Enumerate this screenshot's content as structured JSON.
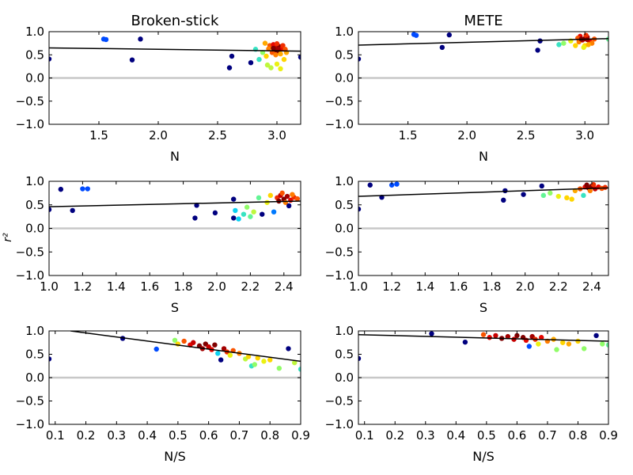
{
  "figure": {
    "ylabel": "r²",
    "colors": {
      "zero_line": "#c8c8c8",
      "fit_line": "#000000",
      "colormap": [
        "#00007f",
        "#0044ff",
        "#00ccff",
        "#7cff7a",
        "#ffee00",
        "#ff7000",
        "#e50000",
        "#7f0000"
      ]
    }
  },
  "chart_data": [
    {
      "type": "scatter",
      "title": "Broken-stick",
      "xlabel": "N",
      "xlim": [
        1.08,
        3.2
      ],
      "ylim": [
        -1.0,
        1.0
      ],
      "xticks": [
        "1.5",
        "2.0",
        "2.5",
        "3.0"
      ],
      "yticks": [
        "1.0",
        "0.5",
        "0.0",
        "−0.5",
        "−1.0"
      ],
      "reference_line_y": 0,
      "fit_line": {
        "x": [
          1.08,
          3.2
        ],
        "y": [
          0.65,
          0.58
        ]
      },
      "points": [
        {
          "x": 1.08,
          "y": 0.41,
          "c": 0.0
        },
        {
          "x": 1.54,
          "y": 0.84,
          "c": 0.15
        },
        {
          "x": 1.56,
          "y": 0.83,
          "c": 0.15
        },
        {
          "x": 1.78,
          "y": 0.39,
          "c": 0.0
        },
        {
          "x": 1.85,
          "y": 0.84,
          "c": 0.0
        },
        {
          "x": 2.6,
          "y": 0.22,
          "c": 0.0
        },
        {
          "x": 2.62,
          "y": 0.47,
          "c": 0.0
        },
        {
          "x": 2.78,
          "y": 0.33,
          "c": 0.0
        },
        {
          "x": 2.85,
          "y": 0.4,
          "c": 0.35
        },
        {
          "x": 2.82,
          "y": 0.62,
          "c": 0.35
        },
        {
          "x": 2.88,
          "y": 0.55,
          "c": 0.45
        },
        {
          "x": 2.92,
          "y": 0.28,
          "c": 0.5
        },
        {
          "x": 2.95,
          "y": 0.22,
          "c": 0.5
        },
        {
          "x": 3.0,
          "y": 0.3,
          "c": 0.55
        },
        {
          "x": 3.03,
          "y": 0.2,
          "c": 0.55
        },
        {
          "x": 3.06,
          "y": 0.4,
          "c": 0.6
        },
        {
          "x": 3.08,
          "y": 0.55,
          "c": 0.65
        },
        {
          "x": 2.9,
          "y": 0.75,
          "c": 0.65
        },
        {
          "x": 2.94,
          "y": 0.7,
          "c": 0.75
        },
        {
          "x": 2.97,
          "y": 0.72,
          "c": 0.85
        },
        {
          "x": 3.0,
          "y": 0.65,
          "c": 0.9
        },
        {
          "x": 3.02,
          "y": 0.68,
          "c": 1.0
        },
        {
          "x": 2.98,
          "y": 0.6,
          "c": 0.95
        },
        {
          "x": 3.04,
          "y": 0.63,
          "c": 0.85
        },
        {
          "x": 2.96,
          "y": 0.55,
          "c": 0.75
        },
        {
          "x": 3.01,
          "y": 0.58,
          "c": 1.0
        },
        {
          "x": 3.05,
          "y": 0.7,
          "c": 0.8
        },
        {
          "x": 2.93,
          "y": 0.63,
          "c": 0.7
        },
        {
          "x": 3.0,
          "y": 0.74,
          "c": 0.8
        },
        {
          "x": 3.07,
          "y": 0.62,
          "c": 0.75
        },
        {
          "x": 2.99,
          "y": 0.5,
          "c": 0.7
        },
        {
          "x": 3.03,
          "y": 0.52,
          "c": 0.65
        },
        {
          "x": 2.91,
          "y": 0.47,
          "c": 0.6
        },
        {
          "x": 2.97,
          "y": 0.64,
          "c": 1.0
        },
        {
          "x": 3.01,
          "y": 0.62,
          "c": 0.95
        },
        {
          "x": 3.2,
          "y": 0.45,
          "c": 0.0
        }
      ]
    },
    {
      "type": "scatter",
      "title": "METE",
      "xlabel": "N",
      "xlim": [
        1.08,
        3.2
      ],
      "ylim": [
        -1.0,
        1.0
      ],
      "xticks": [
        "1.5",
        "2.0",
        "2.5",
        "3.0"
      ],
      "yticks": [
        "1.0",
        "0.5",
        "0.0",
        "−0.5",
        "−1.0"
      ],
      "reference_line_y": 0,
      "fit_line": {
        "x": [
          1.08,
          3.2
        ],
        "y": [
          0.71,
          0.85
        ]
      },
      "points": [
        {
          "x": 1.08,
          "y": 0.41,
          "c": 0.0
        },
        {
          "x": 1.55,
          "y": 0.94,
          "c": 0.15
        },
        {
          "x": 1.57,
          "y": 0.92,
          "c": 0.15
        },
        {
          "x": 1.79,
          "y": 0.66,
          "c": 0.0
        },
        {
          "x": 1.85,
          "y": 0.93,
          "c": 0.0
        },
        {
          "x": 2.6,
          "y": 0.6,
          "c": 0.0
        },
        {
          "x": 2.62,
          "y": 0.8,
          "c": 0.0
        },
        {
          "x": 2.78,
          "y": 0.72,
          "c": 0.35
        },
        {
          "x": 2.82,
          "y": 0.75,
          "c": 0.45
        },
        {
          "x": 2.88,
          "y": 0.8,
          "c": 0.55
        },
        {
          "x": 2.92,
          "y": 0.7,
          "c": 0.6
        },
        {
          "x": 2.95,
          "y": 0.78,
          "c": 0.7
        },
        {
          "x": 2.98,
          "y": 0.82,
          "c": 0.9
        },
        {
          "x": 3.0,
          "y": 0.85,
          "c": 1.0
        },
        {
          "x": 3.02,
          "y": 0.88,
          "c": 0.95
        },
        {
          "x": 2.96,
          "y": 0.9,
          "c": 0.85
        },
        {
          "x": 3.04,
          "y": 0.8,
          "c": 0.85
        },
        {
          "x": 3.06,
          "y": 0.75,
          "c": 0.7
        },
        {
          "x": 3.0,
          "y": 0.7,
          "c": 0.6
        },
        {
          "x": 2.94,
          "y": 0.86,
          "c": 0.75
        },
        {
          "x": 3.01,
          "y": 0.92,
          "c": 0.8
        },
        {
          "x": 3.08,
          "y": 0.84,
          "c": 0.75
        },
        {
          "x": 2.99,
          "y": 0.66,
          "c": 0.55
        },
        {
          "x": 3.03,
          "y": 0.72,
          "c": 0.65
        },
        {
          "x": 2.97,
          "y": 0.84,
          "c": 1.0
        },
        {
          "x": 3.02,
          "y": 0.83,
          "c": 0.95
        },
        {
          "x": 3.2,
          "y": 0.84,
          "c": 0.4
        }
      ]
    },
    {
      "type": "scatter",
      "title": "",
      "xlabel": "S",
      "xlim": [
        1.0,
        2.5
      ],
      "ylim": [
        -1.0,
        1.0
      ],
      "xticks": [
        "1.0",
        "1.2",
        "1.4",
        "1.6",
        "1.8",
        "2.0",
        "2.2",
        "2.4"
      ],
      "yticks": [
        "1.0",
        "0.5",
        "0.0",
        "−0.5",
        "−1.0"
      ],
      "reference_line_y": 0,
      "fit_line": {
        "x": [
          1.0,
          2.5
        ],
        "y": [
          0.46,
          0.58
        ]
      },
      "points": [
        {
          "x": 1.0,
          "y": 0.4,
          "c": 0.0
        },
        {
          "x": 1.07,
          "y": 0.83,
          "c": 0.0
        },
        {
          "x": 1.14,
          "y": 0.38,
          "c": 0.0
        },
        {
          "x": 1.2,
          "y": 0.84,
          "c": 0.15
        },
        {
          "x": 1.23,
          "y": 0.84,
          "c": 0.15
        },
        {
          "x": 1.87,
          "y": 0.22,
          "c": 0.0
        },
        {
          "x": 1.88,
          "y": 0.49,
          "c": 0.0
        },
        {
          "x": 1.99,
          "y": 0.33,
          "c": 0.0
        },
        {
          "x": 2.1,
          "y": 0.62,
          "c": 0.0
        },
        {
          "x": 2.1,
          "y": 0.22,
          "c": 0.0
        },
        {
          "x": 2.11,
          "y": 0.38,
          "c": 0.3
        },
        {
          "x": 2.13,
          "y": 0.2,
          "c": 0.3
        },
        {
          "x": 2.16,
          "y": 0.3,
          "c": 0.35
        },
        {
          "x": 2.18,
          "y": 0.45,
          "c": 0.45
        },
        {
          "x": 2.2,
          "y": 0.25,
          "c": 0.4
        },
        {
          "x": 2.22,
          "y": 0.35,
          "c": 0.5
        },
        {
          "x": 2.25,
          "y": 0.65,
          "c": 0.4
        },
        {
          "x": 2.27,
          "y": 0.3,
          "c": 0.0
        },
        {
          "x": 2.3,
          "y": 0.55,
          "c": 0.55
        },
        {
          "x": 2.32,
          "y": 0.7,
          "c": 0.6
        },
        {
          "x": 2.34,
          "y": 0.35,
          "c": 0.2
        },
        {
          "x": 2.36,
          "y": 0.65,
          "c": 0.8
        },
        {
          "x": 2.38,
          "y": 0.7,
          "c": 0.9
        },
        {
          "x": 2.4,
          "y": 0.62,
          "c": 1.0
        },
        {
          "x": 2.42,
          "y": 0.68,
          "c": 0.95
        },
        {
          "x": 2.44,
          "y": 0.6,
          "c": 0.85
        },
        {
          "x": 2.39,
          "y": 0.75,
          "c": 0.75
        },
        {
          "x": 2.41,
          "y": 0.55,
          "c": 0.7
        },
        {
          "x": 2.43,
          "y": 0.48,
          "c": 0.0
        },
        {
          "x": 2.46,
          "y": 0.66,
          "c": 0.8
        },
        {
          "x": 2.37,
          "y": 0.58,
          "c": 1.0
        },
        {
          "x": 2.45,
          "y": 0.72,
          "c": 0.7
        },
        {
          "x": 2.48,
          "y": 0.63,
          "c": 0.75
        }
      ]
    },
    {
      "type": "scatter",
      "title": "",
      "xlabel": "S",
      "xlim": [
        1.0,
        2.5
      ],
      "ylim": [
        -1.0,
        1.0
      ],
      "xticks": [
        "1.0",
        "1.2",
        "1.4",
        "1.6",
        "1.8",
        "2.0",
        "2.2",
        "2.4"
      ],
      "yticks": [
        "1.0",
        "0.5",
        "0.0",
        "−0.5",
        "−1.0"
      ],
      "reference_line_y": 0,
      "fit_line": {
        "x": [
          1.0,
          2.5
        ],
        "y": [
          0.68,
          0.86
        ]
      },
      "points": [
        {
          "x": 1.0,
          "y": 0.41,
          "c": 0.0
        },
        {
          "x": 1.07,
          "y": 0.92,
          "c": 0.0
        },
        {
          "x": 1.14,
          "y": 0.66,
          "c": 0.0
        },
        {
          "x": 1.2,
          "y": 0.92,
          "c": 0.15
        },
        {
          "x": 1.23,
          "y": 0.94,
          "c": 0.15
        },
        {
          "x": 1.87,
          "y": 0.6,
          "c": 0.0
        },
        {
          "x": 1.88,
          "y": 0.8,
          "c": 0.0
        },
        {
          "x": 1.99,
          "y": 0.72,
          "c": 0.0
        },
        {
          "x": 2.1,
          "y": 0.9,
          "c": 0.0
        },
        {
          "x": 2.11,
          "y": 0.7,
          "c": 0.4
        },
        {
          "x": 2.15,
          "y": 0.75,
          "c": 0.45
        },
        {
          "x": 2.2,
          "y": 0.68,
          "c": 0.55
        },
        {
          "x": 2.25,
          "y": 0.65,
          "c": 0.6
        },
        {
          "x": 2.28,
          "y": 0.62,
          "c": 0.6
        },
        {
          "x": 2.3,
          "y": 0.8,
          "c": 0.65
        },
        {
          "x": 2.33,
          "y": 0.84,
          "c": 0.75
        },
        {
          "x": 2.35,
          "y": 0.7,
          "c": 0.35
        },
        {
          "x": 2.36,
          "y": 0.88,
          "c": 0.85
        },
        {
          "x": 2.38,
          "y": 0.86,
          "c": 0.95
        },
        {
          "x": 2.4,
          "y": 0.9,
          "c": 1.0
        },
        {
          "x": 2.42,
          "y": 0.84,
          "c": 0.9
        },
        {
          "x": 2.44,
          "y": 0.88,
          "c": 0.85
        },
        {
          "x": 2.39,
          "y": 0.8,
          "c": 0.7
        },
        {
          "x": 2.41,
          "y": 0.93,
          "c": 0.8
        },
        {
          "x": 2.46,
          "y": 0.85,
          "c": 0.75
        },
        {
          "x": 2.48,
          "y": 0.87,
          "c": 0.8
        },
        {
          "x": 2.37,
          "y": 0.92,
          "c": 1.0
        }
      ]
    },
    {
      "type": "scatter",
      "title": "",
      "xlabel": "N/S",
      "xlim": [
        0.08,
        0.9
      ],
      "ylim": [
        -1.0,
        1.0
      ],
      "xticks": [
        "0.1",
        "0.2",
        "0.3",
        "0.4",
        "0.5",
        "0.6",
        "0.7",
        "0.8",
        "0.9"
      ],
      "yticks": [
        "1.0",
        "0.5",
        "0.0",
        "−0.5",
        "−1.0"
      ],
      "reference_line_y": 0,
      "fit_line": {
        "x": [
          0.15,
          0.9
        ],
        "y": [
          1.0,
          0.35
        ]
      },
      "points": [
        {
          "x": 0.08,
          "y": 0.4,
          "c": 0.0
        },
        {
          "x": 0.32,
          "y": 0.84,
          "c": 0.0
        },
        {
          "x": 0.43,
          "y": 0.61,
          "c": 0.15
        },
        {
          "x": 0.49,
          "y": 0.8,
          "c": 0.45
        },
        {
          "x": 0.5,
          "y": 0.72,
          "c": 0.6
        },
        {
          "x": 0.52,
          "y": 0.78,
          "c": 0.75
        },
        {
          "x": 0.54,
          "y": 0.7,
          "c": 0.85
        },
        {
          "x": 0.55,
          "y": 0.75,
          "c": 0.9
        },
        {
          "x": 0.57,
          "y": 0.68,
          "c": 1.0
        },
        {
          "x": 0.58,
          "y": 0.62,
          "c": 0.95
        },
        {
          "x": 0.59,
          "y": 0.72,
          "c": 1.0
        },
        {
          "x": 0.6,
          "y": 0.66,
          "c": 0.9
        },
        {
          "x": 0.61,
          "y": 0.6,
          "c": 0.85
        },
        {
          "x": 0.62,
          "y": 0.7,
          "c": 1.0
        },
        {
          "x": 0.63,
          "y": 0.52,
          "c": 0.3
        },
        {
          "x": 0.64,
          "y": 0.38,
          "c": 0.0
        },
        {
          "x": 0.65,
          "y": 0.62,
          "c": 0.95
        },
        {
          "x": 0.66,
          "y": 0.55,
          "c": 0.8
        },
        {
          "x": 0.67,
          "y": 0.48,
          "c": 0.55
        },
        {
          "x": 0.68,
          "y": 0.58,
          "c": 0.75
        },
        {
          "x": 0.7,
          "y": 0.52,
          "c": 0.7
        },
        {
          "x": 0.72,
          "y": 0.4,
          "c": 0.5
        },
        {
          "x": 0.73,
          "y": 0.45,
          "c": 0.6
        },
        {
          "x": 0.74,
          "y": 0.25,
          "c": 0.35
        },
        {
          "x": 0.75,
          "y": 0.28,
          "c": 0.45
        },
        {
          "x": 0.76,
          "y": 0.42,
          "c": 0.6
        },
        {
          "x": 0.78,
          "y": 0.35,
          "c": 0.55
        },
        {
          "x": 0.8,
          "y": 0.38,
          "c": 0.6
        },
        {
          "x": 0.83,
          "y": 0.2,
          "c": 0.45
        },
        {
          "x": 0.86,
          "y": 0.62,
          "c": 0.0
        },
        {
          "x": 0.88,
          "y": 0.32,
          "c": 0.5
        },
        {
          "x": 0.9,
          "y": 0.18,
          "c": 0.35
        }
      ]
    },
    {
      "type": "scatter",
      "title": "",
      "xlabel": "N/S",
      "xlim": [
        0.08,
        0.9
      ],
      "ylim": [
        -1.0,
        1.0
      ],
      "xticks": [
        "0.1",
        "0.2",
        "0.3",
        "0.4",
        "0.5",
        "0.6",
        "0.7",
        "0.8",
        "0.9"
      ],
      "yticks": [
        "1.0",
        "0.5",
        "0.0",
        "−0.5",
        "−1.0"
      ],
      "reference_line_y": 0,
      "fit_line": {
        "x": [
          0.08,
          0.9
        ],
        "y": [
          0.92,
          0.78
        ]
      },
      "points": [
        {
          "x": 0.08,
          "y": 0.41,
          "c": 0.0
        },
        {
          "x": 0.32,
          "y": 0.94,
          "c": 0.0
        },
        {
          "x": 0.43,
          "y": 0.76,
          "c": 0.0
        },
        {
          "x": 0.49,
          "y": 0.92,
          "c": 0.75
        },
        {
          "x": 0.51,
          "y": 0.86,
          "c": 0.85
        },
        {
          "x": 0.53,
          "y": 0.9,
          "c": 0.9
        },
        {
          "x": 0.55,
          "y": 0.84,
          "c": 1.0
        },
        {
          "x": 0.57,
          "y": 0.88,
          "c": 0.95
        },
        {
          "x": 0.59,
          "y": 0.82,
          "c": 0.9
        },
        {
          "x": 0.6,
          "y": 0.9,
          "c": 1.0
        },
        {
          "x": 0.62,
          "y": 0.86,
          "c": 1.0
        },
        {
          "x": 0.63,
          "y": 0.8,
          "c": 0.85
        },
        {
          "x": 0.64,
          "y": 0.67,
          "c": 0.15
        },
        {
          "x": 0.65,
          "y": 0.88,
          "c": 0.95
        },
        {
          "x": 0.66,
          "y": 0.82,
          "c": 0.8
        },
        {
          "x": 0.67,
          "y": 0.72,
          "c": 0.55
        },
        {
          "x": 0.68,
          "y": 0.86,
          "c": 0.85
        },
        {
          "x": 0.7,
          "y": 0.78,
          "c": 0.7
        },
        {
          "x": 0.72,
          "y": 0.82,
          "c": 0.65
        },
        {
          "x": 0.73,
          "y": 0.6,
          "c": 0.45
        },
        {
          "x": 0.75,
          "y": 0.75,
          "c": 0.6
        },
        {
          "x": 0.77,
          "y": 0.72,
          "c": 0.65
        },
        {
          "x": 0.8,
          "y": 0.78,
          "c": 0.6
        },
        {
          "x": 0.82,
          "y": 0.62,
          "c": 0.45
        },
        {
          "x": 0.86,
          "y": 0.9,
          "c": 0.0
        },
        {
          "x": 0.88,
          "y": 0.72,
          "c": 0.45
        },
        {
          "x": 0.9,
          "y": 0.7,
          "c": 0.4
        }
      ]
    }
  ]
}
